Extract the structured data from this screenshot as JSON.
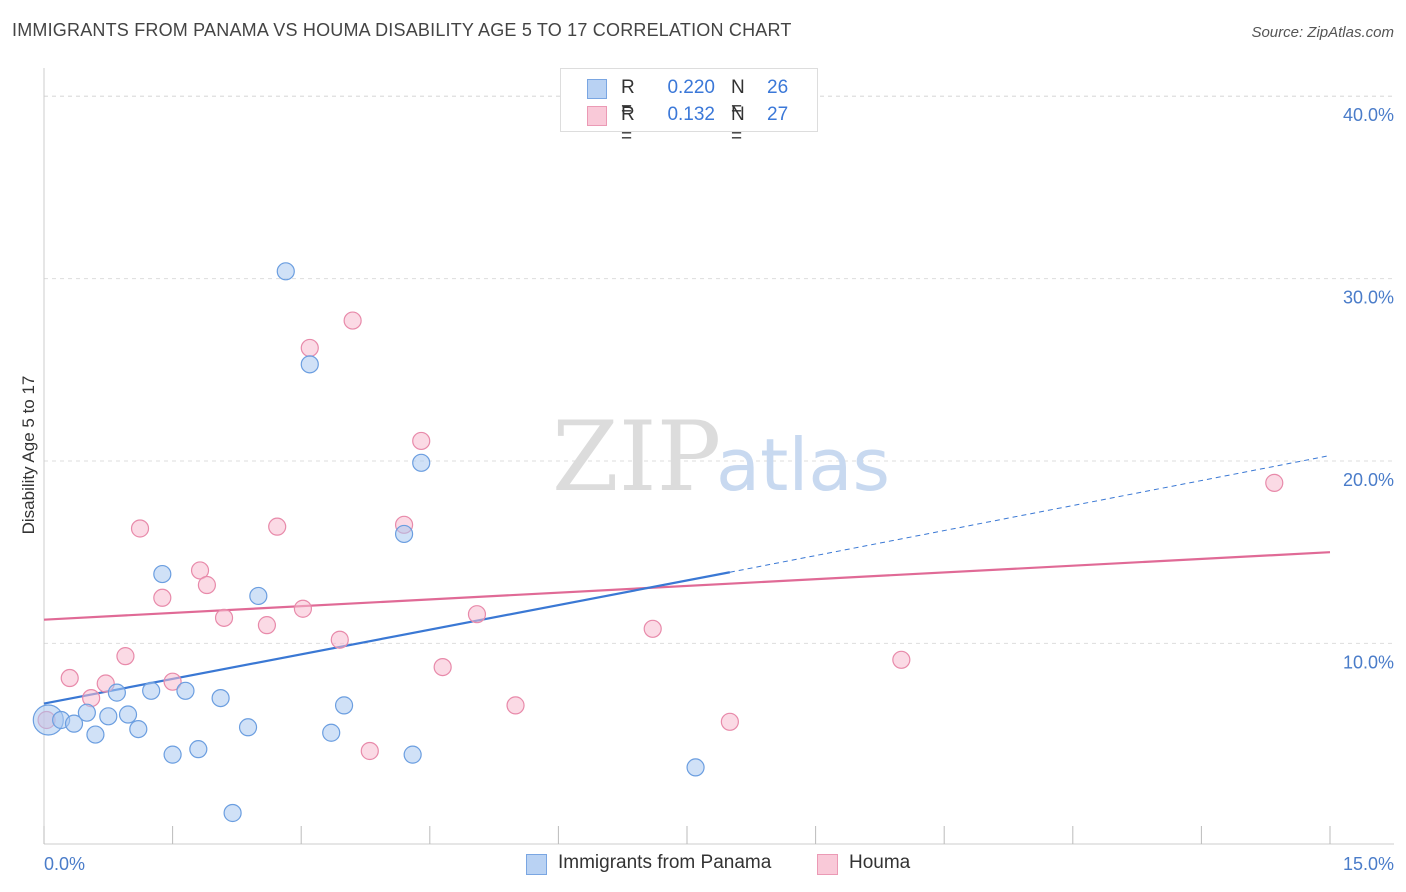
{
  "header": {
    "title": "IMMIGRANTS FROM PANAMA VS HOUMA DISABILITY AGE 5 TO 17 CORRELATION CHART",
    "source": "Source: ZipAtlas.com"
  },
  "legend": {
    "series1": {
      "r_label": "R =",
      "r_value": "0.220",
      "n_label": "N =",
      "n_value": "26"
    },
    "series2": {
      "r_label": "R =",
      "r_value": "0.132",
      "n_label": "N =",
      "n_value": "27"
    }
  },
  "bottom_legend": {
    "series1": "Immigrants from Panama",
    "series2": "Houma"
  },
  "watermark": {
    "zip": "ZIP",
    "atlas": "atlas"
  },
  "colors": {
    "series1_fill": "#a9c8f0",
    "series1_stroke": "#6b9ee0",
    "series1_line": "#3a78d4",
    "series2_fill": "#f7bcd0",
    "series2_stroke": "#e88aaa",
    "series2_line": "#e06a96",
    "grid": "#dddddd",
    "tick": "#4a7cc9"
  },
  "chart_data": {
    "type": "scatter",
    "title": "IMMIGRANTS FROM PANAMA VS HOUMA DISABILITY AGE 5 TO 17 CORRELATION CHART",
    "xlabel": "",
    "ylabel": "Disability Age 5 to 17",
    "xlim": [
      0,
      15
    ],
    "ylim": [
      -1,
      41
    ],
    "x_tick_labels": [
      "0.0%",
      "15.0%"
    ],
    "y_ticks": [
      10,
      20,
      30,
      40
    ],
    "y_tick_labels": [
      "10.0%",
      "20.0%",
      "30.0%",
      "40.0%"
    ],
    "grid": true,
    "series": [
      {
        "name": "Immigrants from Panama",
        "R": 0.22,
        "N": 26,
        "trend": {
          "x0": 0,
          "y0": 6.7,
          "x1": 8.0,
          "y1": 13.9,
          "dashed_to_x": 15.0,
          "dashed_to_y": 20.3
        },
        "points": [
          {
            "x": 0.05,
            "y": 5.8,
            "big": true
          },
          {
            "x": 0.2,
            "y": 5.8
          },
          {
            "x": 0.35,
            "y": 5.6
          },
          {
            "x": 0.5,
            "y": 6.2
          },
          {
            "x": 0.6,
            "y": 5.0
          },
          {
            "x": 0.75,
            "y": 6.0
          },
          {
            "x": 0.85,
            "y": 7.3
          },
          {
            "x": 0.98,
            "y": 6.1
          },
          {
            "x": 1.1,
            "y": 5.3
          },
          {
            "x": 1.25,
            "y": 7.4
          },
          {
            "x": 1.38,
            "y": 13.8
          },
          {
            "x": 1.5,
            "y": 3.9
          },
          {
            "x": 1.65,
            "y": 7.4
          },
          {
            "x": 1.8,
            "y": 4.2
          },
          {
            "x": 2.06,
            "y": 7.0
          },
          {
            "x": 2.2,
            "y": 0.7
          },
          {
            "x": 2.38,
            "y": 5.4
          },
          {
            "x": 2.5,
            "y": 12.6
          },
          {
            "x": 2.82,
            "y": 30.4
          },
          {
            "x": 3.1,
            "y": 25.3
          },
          {
            "x": 3.35,
            "y": 5.1
          },
          {
            "x": 3.5,
            "y": 6.6
          },
          {
            "x": 4.2,
            "y": 16.0
          },
          {
            "x": 4.3,
            "y": 3.9
          },
          {
            "x": 4.4,
            "y": 19.9
          },
          {
            "x": 7.6,
            "y": 3.2
          }
        ]
      },
      {
        "name": "Houma",
        "R": 0.132,
        "N": 27,
        "trend": {
          "x0": 0,
          "y0": 11.3,
          "x1": 15.0,
          "y1": 15.0
        },
        "points": [
          {
            "x": 0.03,
            "y": 5.8
          },
          {
            "x": 0.3,
            "y": 8.1
          },
          {
            "x": 0.55,
            "y": 7.0
          },
          {
            "x": 0.72,
            "y": 7.8
          },
          {
            "x": 0.95,
            "y": 9.3
          },
          {
            "x": 1.12,
            "y": 16.3
          },
          {
            "x": 1.38,
            "y": 12.5
          },
          {
            "x": 1.5,
            "y": 7.9
          },
          {
            "x": 1.82,
            "y": 14.0
          },
          {
            "x": 1.9,
            "y": 13.2
          },
          {
            "x": 2.1,
            "y": 11.4
          },
          {
            "x": 2.6,
            "y": 11.0
          },
          {
            "x": 2.72,
            "y": 16.4
          },
          {
            "x": 3.02,
            "y": 11.9
          },
          {
            "x": 3.1,
            "y": 26.2
          },
          {
            "x": 3.45,
            "y": 10.2
          },
          {
            "x": 3.6,
            "y": 27.7
          },
          {
            "x": 3.8,
            "y": 4.1
          },
          {
            "x": 4.2,
            "y": 16.5
          },
          {
            "x": 4.4,
            "y": 21.1
          },
          {
            "x": 4.65,
            "y": 8.7
          },
          {
            "x": 5.05,
            "y": 11.6
          },
          {
            "x": 5.5,
            "y": 6.6
          },
          {
            "x": 7.1,
            "y": 10.8
          },
          {
            "x": 8.0,
            "y": 5.7
          },
          {
            "x": 10.0,
            "y": 9.1
          },
          {
            "x": 14.35,
            "y": 18.8
          }
        ]
      }
    ]
  }
}
